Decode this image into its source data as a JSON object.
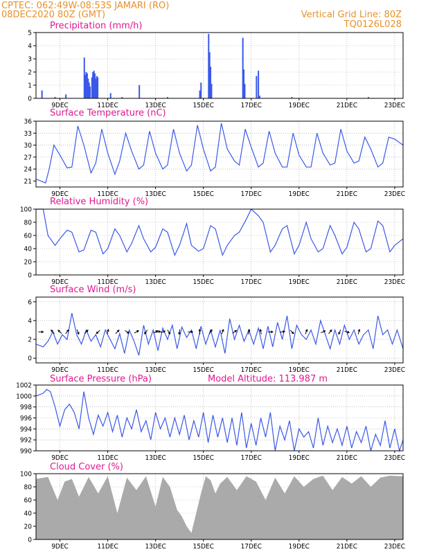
{
  "header": {
    "line1": "CPTEC:   062:49W-08:53S  JAMARI (RO)",
    "line2": "08DEC2020 80Z (GMT)",
    "right1": "Vertical Grid Line: 80Z",
    "right2": "TQ0126L028"
  },
  "colors": {
    "header": "#e8902a",
    "titles": "#e01890",
    "series": "#3a58e8",
    "cloud": "#aaaaaa",
    "grid": "#999999"
  },
  "x_ticks": [
    "9DEC",
    "11DEC",
    "13DEC",
    "15DEC",
    "17DEC",
    "19DEC",
    "21DEC",
    "23DEC"
  ],
  "chart_data": [
    {
      "type": "bar",
      "title": "Precipitation (mm/h)",
      "ylim": [
        0,
        5
      ],
      "yticks": [
        "0",
        "1",
        "2",
        "3",
        "4",
        "5"
      ],
      "x_unit": "days since 08DEC2020 00Z",
      "points": [
        [
          0.25,
          0.6
        ],
        [
          1.25,
          0.3
        ],
        [
          2.02,
          3.1
        ],
        [
          2.06,
          1.8
        ],
        [
          2.1,
          2.0
        ],
        [
          2.14,
          1.9
        ],
        [
          2.18,
          1.5
        ],
        [
          2.22,
          1.2
        ],
        [
          2.26,
          0.9
        ],
        [
          2.34,
          1.6
        ],
        [
          2.38,
          2.0
        ],
        [
          2.42,
          2.1
        ],
        [
          2.46,
          1.9
        ],
        [
          2.5,
          1.5
        ],
        [
          2.54,
          1.7
        ],
        [
          2.58,
          1.6
        ],
        [
          3.12,
          0.4
        ],
        [
          4.32,
          1.0
        ],
        [
          6.85,
          0.6
        ],
        [
          6.9,
          1.2
        ],
        [
          7.22,
          4.9
        ],
        [
          7.26,
          3.5
        ],
        [
          7.3,
          2.4
        ],
        [
          7.34,
          1.1
        ],
        [
          8.65,
          4.6
        ],
        [
          8.69,
          2.2
        ],
        [
          8.73,
          1.1
        ],
        [
          9.22,
          1.7
        ],
        [
          9.3,
          2.1
        ],
        [
          9.35,
          0.2
        ],
        [
          0.8,
          0.1
        ],
        [
          3.6,
          0.1
        ],
        [
          5.5,
          0.1
        ],
        [
          10.7,
          0.1
        ],
        [
          13.9,
          0.1
        ]
      ]
    },
    {
      "type": "line",
      "title": "Surface Temperature (nC)",
      "ylim": [
        19.5,
        36
      ],
      "yticks": [
        "21",
        "24",
        "27",
        "30",
        "33",
        "36"
      ],
      "x": [
        0.0,
        0.4,
        0.55,
        0.75,
        1.0,
        1.3,
        1.5,
        1.75,
        2.0,
        2.3,
        2.5,
        2.75,
        3.0,
        3.3,
        3.5,
        3.75,
        4.0,
        4.3,
        4.5,
        4.75,
        5.0,
        5.3,
        5.5,
        5.75,
        6.0,
        6.3,
        6.5,
        6.75,
        7.0,
        7.3,
        7.5,
        7.75,
        8.0,
        8.3,
        8.5,
        8.75,
        9.0,
        9.3,
        9.5,
        9.75,
        10.0,
        10.3,
        10.5,
        10.75,
        11.0,
        11.3,
        11.5,
        11.75,
        12.0,
        12.3,
        12.5,
        12.75,
        13.0,
        13.3,
        13.5,
        13.75,
        14.0,
        14.3,
        14.5,
        14.75,
        15.0,
        15.35
      ],
      "values": [
        21.5,
        20.5,
        24.0,
        30.0,
        27.5,
        24.3,
        24.5,
        34.8,
        30.0,
        23.0,
        25.5,
        34.0,
        28.0,
        22.7,
        26.0,
        33.0,
        28.5,
        24.0,
        25.0,
        33.5,
        28.0,
        24.0,
        25.0,
        34.0,
        28.0,
        23.5,
        25.0,
        35.0,
        29.0,
        23.5,
        24.5,
        35.5,
        29.0,
        26.0,
        25.0,
        34.0,
        29.5,
        24.5,
        25.5,
        33.5,
        28.0,
        24.5,
        24.5,
        33.0,
        27.5,
        24.5,
        24.5,
        33.0,
        28.0,
        25.0,
        25.5,
        34.0,
        28.5,
        25.5,
        26.0,
        32.0,
        29.0,
        24.5,
        25.5,
        32.0,
        31.5,
        30.0
      ]
    },
    {
      "type": "line",
      "title": "Relative Humidity (%)",
      "ylim": [
        0,
        100
      ],
      "yticks": [
        "0",
        "20",
        "40",
        "60",
        "80",
        "100"
      ],
      "x": [
        0.0,
        0.3,
        0.5,
        0.8,
        1.0,
        1.3,
        1.5,
        1.8,
        2.0,
        2.3,
        2.5,
        2.8,
        3.0,
        3.3,
        3.5,
        3.8,
        4.0,
        4.3,
        4.5,
        4.8,
        5.0,
        5.3,
        5.5,
        5.8,
        6.0,
        6.3,
        6.5,
        6.8,
        7.0,
        7.3,
        7.5,
        7.8,
        8.0,
        8.3,
        8.5,
        8.8,
        9.0,
        9.3,
        9.5,
        9.8,
        10.0,
        10.3,
        10.5,
        10.8,
        11.0,
        11.3,
        11.5,
        11.8,
        12.0,
        12.3,
        12.5,
        12.8,
        13.0,
        13.3,
        13.5,
        13.8,
        14.0,
        14.3,
        14.5,
        14.8,
        15.0,
        15.35
      ],
      "values": [
        100,
        100,
        60,
        45,
        55,
        68,
        65,
        35,
        38,
        68,
        65,
        32,
        40,
        70,
        60,
        35,
        48,
        75,
        55,
        35,
        42,
        70,
        65,
        30,
        45,
        78,
        45,
        36,
        40,
        75,
        70,
        30,
        45,
        60,
        65,
        85,
        100,
        90,
        80,
        35,
        45,
        70,
        75,
        32,
        45,
        80,
        55,
        35,
        40,
        75,
        60,
        32,
        42,
        80,
        70,
        35,
        40,
        82,
        75,
        35,
        45,
        55
      ]
    },
    {
      "type": "line",
      "title": "Surface Wind (m/s)",
      "ylim": [
        -0.5,
        6.5
      ],
      "yticks": [
        "0",
        "2",
        "4",
        "6"
      ],
      "x": [
        0.0,
        0.3,
        0.5,
        0.7,
        0.9,
        1.1,
        1.3,
        1.5,
        1.7,
        1.9,
        2.1,
        2.3,
        2.5,
        2.7,
        2.9,
        3.1,
        3.3,
        3.5,
        3.7,
        3.9,
        4.1,
        4.3,
        4.5,
        4.7,
        4.9,
        5.1,
        5.3,
        5.5,
        5.7,
        5.9,
        6.1,
        6.3,
        6.5,
        6.7,
        6.9,
        7.1,
        7.3,
        7.5,
        7.7,
        7.9,
        8.1,
        8.3,
        8.5,
        8.7,
        8.9,
        9.1,
        9.3,
        9.5,
        9.7,
        9.9,
        10.1,
        10.3,
        10.5,
        10.7,
        10.9,
        11.1,
        11.3,
        11.5,
        11.7,
        11.9,
        12.1,
        12.3,
        12.5,
        12.7,
        12.9,
        13.1,
        13.3,
        13.5,
        13.7,
        13.9,
        14.1,
        14.3,
        14.5,
        14.7,
        14.9,
        15.1,
        15.35
      ],
      "values": [
        1.5,
        1.2,
        1.8,
        2.8,
        1.5,
        2.5,
        2.0,
        4.8,
        2.5,
        1.5,
        3.0,
        1.8,
        2.5,
        1.2,
        3.0,
        2.0,
        1.0,
        2.6,
        0.5,
        3.0,
        1.8,
        0.3,
        3.5,
        1.5,
        3.0,
        0.8,
        3.2,
        2.0,
        3.5,
        1.0,
        3.3,
        2.2,
        3.0,
        1.0,
        3.4,
        1.5,
        3.0,
        1.2,
        3.0,
        0.5,
        4.2,
        2.0,
        3.5,
        1.8,
        3.0,
        1.5,
        3.2,
        1.0,
        3.4,
        1.2,
        3.8,
        2.0,
        4.5,
        1.0,
        3.5,
        2.5,
        2.0,
        3.0,
        1.5,
        4.0,
        2.5,
        1.0,
        3.0,
        1.5,
        3.5,
        2.0,
        3.0,
        1.5,
        2.5,
        3.0,
        1.0,
        4.5,
        2.5,
        3.0,
        1.5,
        3.0,
        1.0
      ],
      "arrows": [
        [
          0.2,
          0.0
        ],
        [
          0.7,
          -2.3
        ],
        [
          1.0,
          3.9
        ],
        [
          1.3,
          -0.9
        ],
        [
          1.75,
          1.2
        ],
        [
          2.1,
          -0.8
        ],
        [
          2.6,
          2.4
        ],
        [
          3.0,
          -1.3
        ],
        [
          3.4,
          -0.8
        ],
        [
          3.8,
          0.6
        ],
        [
          4.2,
          -0.5
        ],
        [
          4.6,
          2.2
        ],
        [
          5.0,
          -0.5
        ],
        [
          5.1,
          -0.2
        ],
        [
          5.3,
          -0.3
        ],
        [
          5.55,
          1.0
        ],
        [
          6.0,
          1.7
        ],
        [
          6.45,
          0.0
        ],
        [
          6.85,
          -1.6
        ],
        [
          7.3,
          -1.0
        ],
        [
          7.8,
          -1.2
        ],
        [
          8.3,
          -0.6
        ],
        [
          8.9,
          -1.4
        ],
        [
          9.4,
          -1.8
        ],
        [
          9.8,
          0.0
        ],
        [
          10.3,
          -0.2
        ],
        [
          10.7,
          0.8
        ],
        [
          11.3,
          -1.2
        ],
        [
          12.0,
          -0.4
        ],
        [
          12.3,
          -0.9
        ],
        [
          12.7,
          2.0
        ],
        [
          13.0,
          0.3
        ],
        [
          13.5,
          -1.3
        ]
      ]
    },
    {
      "type": "line",
      "title": "Surface Pressure (hPa)",
      "subtitle": "Model Altitude: 113.987 m",
      "ylim": [
        990,
        1002
      ],
      "yticks": [
        "990",
        "992",
        "994",
        "996",
        "998",
        "1000",
        "1002"
      ],
      "x": [
        0.0,
        0.3,
        0.45,
        0.6,
        0.8,
        1.0,
        1.2,
        1.4,
        1.6,
        1.8,
        2.0,
        2.2,
        2.4,
        2.6,
        2.8,
        3.0,
        3.2,
        3.4,
        3.6,
        3.8,
        4.0,
        4.2,
        4.4,
        4.6,
        4.8,
        5.0,
        5.2,
        5.4,
        5.6,
        5.8,
        6.0,
        6.2,
        6.4,
        6.6,
        6.8,
        7.0,
        7.2,
        7.4,
        7.6,
        7.8,
        8.0,
        8.2,
        8.4,
        8.6,
        8.8,
        9.0,
        9.2,
        9.4,
        9.6,
        9.8,
        10.0,
        10.2,
        10.4,
        10.6,
        10.8,
        11.0,
        11.2,
        11.4,
        11.6,
        11.8,
        12.0,
        12.2,
        12.4,
        12.6,
        12.8,
        13.0,
        13.2,
        13.4,
        13.6,
        13.8,
        14.0,
        14.2,
        14.4,
        14.6,
        14.8,
        15.0,
        15.2,
        15.35
      ],
      "values": [
        1000.0,
        1000.5,
        1001.2,
        1000.8,
        998.0,
        994.5,
        997.5,
        998.5,
        997.0,
        994.0,
        1000.8,
        996.0,
        993.0,
        996.5,
        994.5,
        997.0,
        993.5,
        996.5,
        992.5,
        996.0,
        994.0,
        997.5,
        993.5,
        995.5,
        992.0,
        997.0,
        994.0,
        996.0,
        992.5,
        996.0,
        993.0,
        996.5,
        992.0,
        995.5,
        992.5,
        997.0,
        991.5,
        996.5,
        992.5,
        996.0,
        991.5,
        996.0,
        991.0,
        997.0,
        990.5,
        995.0,
        991.0,
        996.0,
        992.5,
        997.0,
        990.0,
        994.5,
        992.0,
        995.5,
        990.0,
        994.0,
        992.5,
        993.5,
        990.5,
        996.0,
        991.0,
        994.5,
        991.5,
        994.0,
        991.0,
        994.5,
        990.5,
        993.5,
        991.5,
        994.5,
        990.0,
        993.0,
        991.0,
        995.5,
        990.5,
        994.0,
        990.0,
        992.0
      ]
    },
    {
      "type": "area",
      "title": "Cloud Cover (%)",
      "ylim": [
        0,
        100
      ],
      "yticks": [
        "0",
        "20",
        "40",
        "60",
        "80",
        "100"
      ],
      "x": [
        0.0,
        0.5,
        0.9,
        1.2,
        1.5,
        1.8,
        2.2,
        2.6,
        3.0,
        3.4,
        3.8,
        4.2,
        4.6,
        5.0,
        5.3,
        5.6,
        5.9,
        6.1,
        6.3,
        6.5,
        6.7,
        6.9,
        7.1,
        7.3,
        7.5,
        7.7,
        8.0,
        8.4,
        8.8,
        9.2,
        9.6,
        10.0,
        10.4,
        10.8,
        11.2,
        11.6,
        12.0,
        12.4,
        12.8,
        13.2,
        13.6,
        14.0,
        14.4,
        14.8,
        15.35
      ],
      "values": [
        92,
        95,
        60,
        88,
        92,
        65,
        95,
        70,
        96,
        40,
        94,
        75,
        96,
        50,
        95,
        80,
        45,
        35,
        20,
        10,
        40,
        70,
        96,
        90,
        70,
        85,
        95,
        75,
        96,
        88,
        60,
        94,
        70,
        96,
        80,
        92,
        97,
        75,
        95,
        85,
        96,
        80,
        94,
        97,
        96
      ]
    }
  ]
}
